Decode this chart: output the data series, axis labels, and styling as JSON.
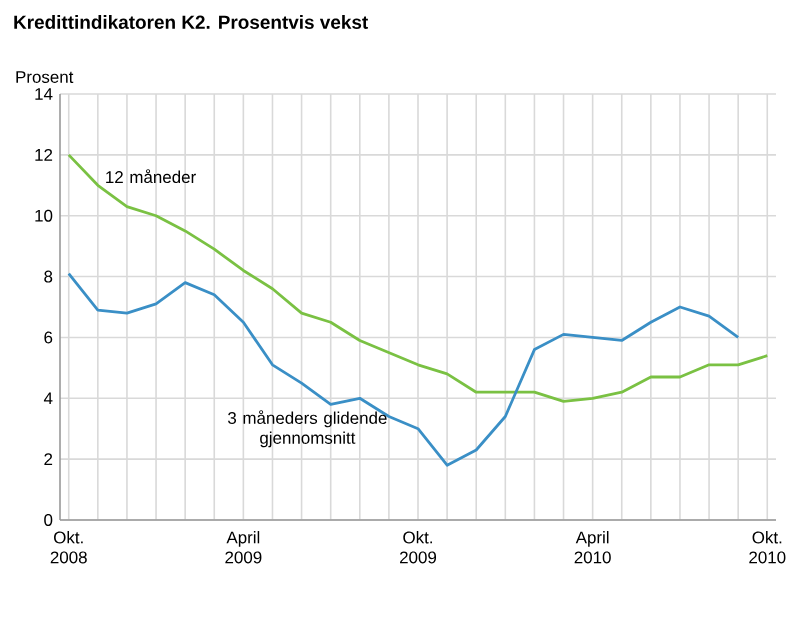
{
  "chart_data": {
    "type": "line",
    "title": "Kredittindikatoren K2. Prosentvis vekst",
    "ylabel": "Prosent",
    "categories": [
      "Okt. 2008",
      null,
      null,
      null,
      null,
      null,
      "April 2009",
      null,
      null,
      null,
      null,
      null,
      "Okt. 2009",
      null,
      null,
      null,
      null,
      null,
      "April 2010",
      null,
      null,
      null,
      null,
      null,
      "Okt. 2010"
    ],
    "series": [
      {
        "name": "12 måneder",
        "color": "#7ac143",
        "values": [
          12.0,
          11.0,
          10.3,
          10.0,
          9.5,
          8.9,
          8.2,
          7.6,
          6.8,
          6.5,
          5.9,
          5.5,
          5.1,
          4.8,
          4.2,
          4.2,
          4.2,
          3.9,
          4.0,
          4.2,
          4.7,
          4.7,
          5.1,
          5.1,
          5.4
        ]
      },
      {
        "name": "3 måneders glidende gjennomsnitt",
        "color": "#3a8fc6",
        "values": [
          8.1,
          6.9,
          6.8,
          7.1,
          7.8,
          7.4,
          6.5,
          5.1,
          4.5,
          3.8,
          4.0,
          3.4,
          3.0,
          1.8,
          2.3,
          3.4,
          5.6,
          6.1,
          6.0,
          5.9,
          6.5,
          7.0,
          6.7,
          6.0,
          null
        ]
      }
    ],
    "ylim": [
      0,
      14
    ],
    "yticks": [
      0,
      2,
      4,
      6,
      8,
      10,
      12,
      14
    ],
    "grid": true
  }
}
